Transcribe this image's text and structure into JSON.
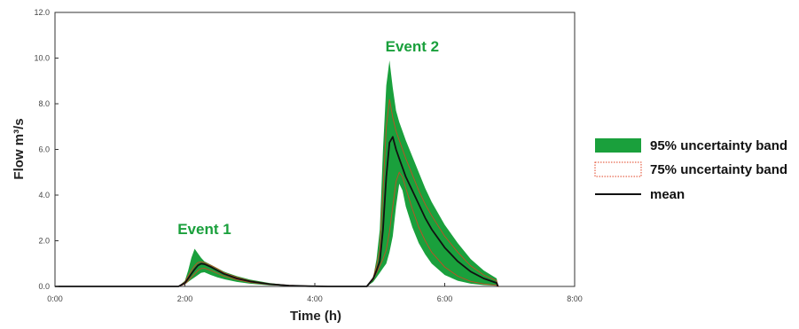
{
  "chart_data": {
    "type": "area",
    "title": "",
    "xlabel": "Time (h)",
    "ylabel": "Flow m³/s",
    "xlim": [
      0,
      8
    ],
    "ylim": [
      0,
      12
    ],
    "x_tick_values": [
      0,
      2,
      4,
      6,
      8
    ],
    "x_ticks": [
      "0:00",
      "2:00",
      "4:00",
      "6:00",
      "8:00"
    ],
    "y_tick_values": [
      0,
      2,
      4,
      6,
      8,
      10,
      12
    ],
    "y_ticks": [
      "0.0",
      "2.0",
      "4.0",
      "6.0",
      "8.0",
      "10.0",
      "12.0"
    ],
    "grid": false,
    "legend_position": "right",
    "x": [
      0,
      1.9,
      2.0,
      2.05,
      2.1,
      2.15,
      2.2,
      2.25,
      2.3,
      2.4,
      2.5,
      2.6,
      2.8,
      3.0,
      3.3,
      3.6,
      3.9,
      4.2,
      4.8,
      4.9,
      4.95,
      5.0,
      5.05,
      5.1,
      5.15,
      5.2,
      5.25,
      5.3,
      5.35,
      5.4,
      5.5,
      5.6,
      5.7,
      5.8,
      6.0,
      6.2,
      6.4,
      6.6,
      6.8,
      6.82
    ],
    "series": [
      {
        "name": "95% uncertainty band",
        "kind": "band",
        "color": "#1aa03c",
        "lower": [
          0,
          0,
          0.08,
          0.2,
          0.3,
          0.4,
          0.5,
          0.6,
          0.62,
          0.5,
          0.4,
          0.32,
          0.2,
          0.12,
          0.05,
          0.02,
          0,
          0,
          0,
          0.2,
          0.4,
          0.6,
          0.8,
          1.0,
          1.5,
          2.2,
          3.5,
          4.5,
          4.2,
          3.5,
          2.6,
          1.9,
          1.4,
          1.0,
          0.5,
          0.25,
          0.12,
          0.06,
          0.03,
          0
        ],
        "upper": [
          0,
          0,
          0.25,
          0.7,
          1.25,
          1.65,
          1.45,
          1.25,
          1.1,
          0.95,
          0.8,
          0.65,
          0.45,
          0.3,
          0.15,
          0.06,
          0.02,
          0,
          0,
          0.4,
          1.2,
          2.5,
          6.0,
          8.8,
          9.9,
          8.7,
          7.7,
          7.2,
          6.8,
          6.4,
          5.7,
          5.0,
          4.3,
          3.7,
          2.7,
          1.9,
          1.2,
          0.7,
          0.35,
          0
        ]
      },
      {
        "name": "75% uncertainty band",
        "kind": "band",
        "color": "#e04020",
        "lower": [
          0,
          0,
          0.1,
          0.25,
          0.4,
          0.55,
          0.7,
          0.78,
          0.8,
          0.7,
          0.58,
          0.45,
          0.3,
          0.18,
          0.08,
          0.03,
          0.01,
          0,
          0,
          0.3,
          0.6,
          0.9,
          1.2,
          1.6,
          2.4,
          3.5,
          4.6,
          5.0,
          4.8,
          4.3,
          3.4,
          2.6,
          2.0,
          1.5,
          0.85,
          0.45,
          0.22,
          0.11,
          0.05,
          0
        ],
        "upper": [
          0,
          0,
          0.2,
          0.45,
          0.7,
          0.9,
          1.05,
          1.08,
          1.05,
          0.92,
          0.78,
          0.6,
          0.4,
          0.25,
          0.12,
          0.05,
          0.02,
          0,
          0,
          0.4,
          0.9,
          1.6,
          4.2,
          7.0,
          8.2,
          7.4,
          6.8,
          6.4,
          6.0,
          5.6,
          4.9,
          4.2,
          3.6,
          3.1,
          2.2,
          1.5,
          0.9,
          0.5,
          0.25,
          0
        ]
      },
      {
        "name": "mean",
        "kind": "line",
        "color": "#111111",
        "values": [
          0,
          0,
          0.15,
          0.35,
          0.55,
          0.75,
          0.92,
          1.0,
          0.98,
          0.85,
          0.7,
          0.55,
          0.35,
          0.22,
          0.1,
          0.04,
          0.01,
          0,
          0,
          0.35,
          0.7,
          1.1,
          2.5,
          4.8,
          6.3,
          6.55,
          6.0,
          5.6,
          5.2,
          4.8,
          4.2,
          3.6,
          3.0,
          2.5,
          1.7,
          1.1,
          0.65,
          0.35,
          0.15,
          0
        ]
      }
    ],
    "annotations": [
      {
        "text": "Event 1",
        "x": 2.3,
        "y": 2.3,
        "color": "#1aa03c"
      },
      {
        "text": "Event 2",
        "x": 5.5,
        "y": 10.3,
        "color": "#1aa03c"
      }
    ]
  }
}
